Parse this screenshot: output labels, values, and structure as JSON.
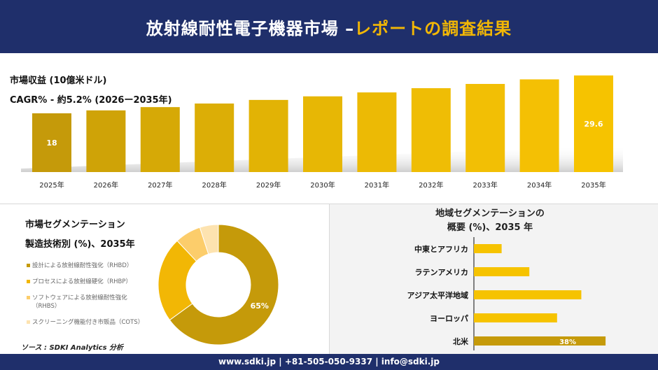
{
  "header": {
    "title_main": "放射線耐性電子機器市場 –",
    "title_accent": "レポートの調査結果"
  },
  "top_panel": {
    "revenue_label": "市場収益 (10億米ドル)",
    "cagr_label": "CAGR% - 約5.2% (2026ー2035年)"
  },
  "segmentation": {
    "title_line1": "市場セグメンテーション",
    "title_line2": "製造技術別 (%)、2035年",
    "legend": [
      {
        "label": "設計による放射線耐性強化（RHBD）",
        "color": "#c59a0a"
      },
      {
        "label": "プロセスによる放射線硬化（RHBP）",
        "color": "#f2b705"
      },
      {
        "label": "ソフトウェアによる放射線耐性強化（RHBS）",
        "color": "#fccd6b"
      },
      {
        "label": "スクリーニング機能付き市販品（COTS）",
        "color": "#fde3b0"
      }
    ]
  },
  "region": {
    "title_line1": "地域セグメンテーションの",
    "title_line2": "概要 (%)、2035 年"
  },
  "source": "ソース : SDKI Analytics 分析",
  "footer": "www.sdki.jp | +81-505-050-9337 | info@sdki.jp",
  "chart_data": [
    {
      "type": "bar",
      "categories": [
        "2025年",
        "2026年",
        "2027年",
        "2028年",
        "2029年",
        "2030年",
        "2031年",
        "2032年",
        "2033年",
        "2034年",
        "2035年"
      ],
      "values": [
        18,
        18.9,
        19.9,
        21.0,
        22.1,
        23.2,
        24.4,
        25.7,
        27.0,
        28.4,
        29.6
      ],
      "data_labels": {
        "0": "18",
        "10": "29.6"
      },
      "colors": [
        "#c59a0a",
        "#cfa307",
        "#d6a906",
        "#dcae06",
        "#e2b305",
        "#e7b705",
        "#ecba05",
        "#efbd05",
        "#f2bf05",
        "#f4c004",
        "#f6c300"
      ],
      "title": "",
      "xlabel": "",
      "ylabel": "",
      "grid": false
    },
    {
      "type": "pie",
      "categories": [
        "設計による放射線耐性強化（RHBD）",
        "プロセスによる放射線硬化（RHBP）",
        "ソフトウェアによる放射線耐性強化（RHBS）",
        "スクリーニング機能付き市販品（COTS）"
      ],
      "values": [
        65,
        23,
        7,
        5
      ],
      "data_labels": {
        "0": "65%"
      },
      "colors": [
        "#c59a0a",
        "#f2b705",
        "#fccd6b",
        "#fde3b0"
      ],
      "donut": true
    },
    {
      "type": "bar",
      "orientation": "horizontal",
      "categories": [
        "中東とアフリカ",
        "ラテンアメリカ",
        "アジア太平洋地域",
        "ヨーロッパ",
        "北米"
      ],
      "values": [
        8,
        16,
        31,
        24,
        38
      ],
      "data_labels": {
        "4": "38%"
      },
      "colors": [
        "#f6c300",
        "#f6c300",
        "#f6c300",
        "#f6c300",
        "#c59a0a"
      ],
      "xlim": [
        0,
        40
      ],
      "grid": false
    }
  ]
}
